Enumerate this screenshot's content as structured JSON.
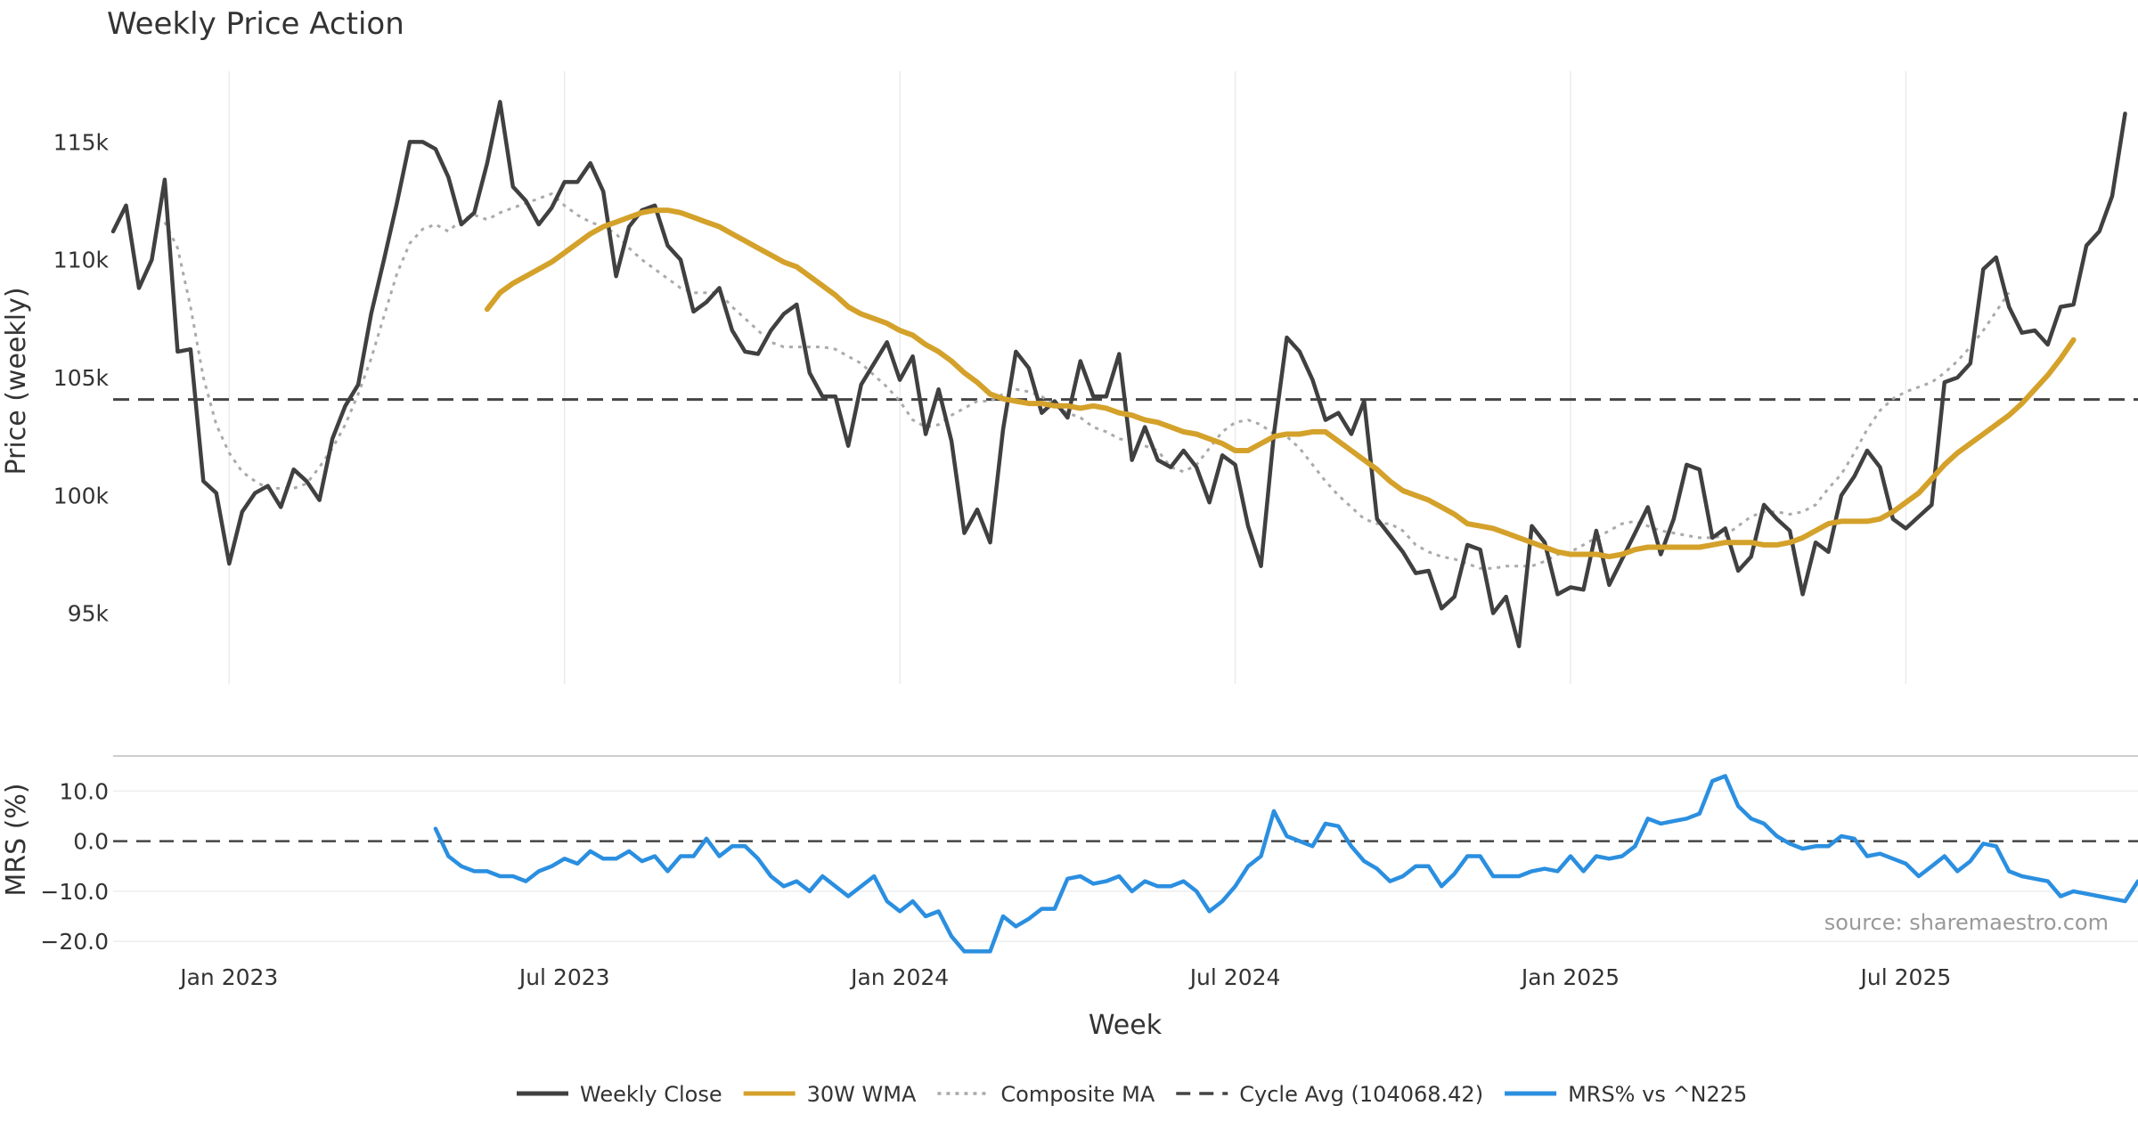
{
  "chart_data": {
    "title": "Weekly Price Action",
    "source": "source: sharemaestro.com",
    "xlabel": "Week",
    "x_ticks": [
      {
        "label": "Jan 2023",
        "week": 9
      },
      {
        "label": "Jul 2023",
        "week": 35
      },
      {
        "label": "Jan 2024",
        "week": 61
      },
      {
        "label": "Jul 2024",
        "week": 87
      },
      {
        "label": "Jan 2025",
        "week": 113
      },
      {
        "label": "Jul 2025",
        "week": 139
      }
    ],
    "price_panel": {
      "type": "line",
      "ylabel": "Price (weekly)",
      "ylim": [
        92000,
        118000
      ],
      "yticks": [
        95000,
        100000,
        105000,
        110000,
        115000
      ],
      "ytick_labels": [
        "95k",
        "100k",
        "105k",
        "110k",
        "115k"
      ],
      "cycle_avg": 104068.42,
      "series": [
        {
          "name": "Weekly Close",
          "color": "#404040",
          "start_week": 0,
          "values": [
            111200,
            112300,
            108800,
            110000,
            113400,
            106100,
            106200,
            100600,
            100100,
            97100,
            99300,
            100100,
            100400,
            99500,
            101100,
            100600,
            99800,
            102400,
            103800,
            104700,
            107700,
            110000,
            112400,
            115000,
            115000,
            114700,
            113500,
            111500,
            112000,
            114100,
            116700,
            113100,
            112500,
            111500,
            112200,
            113300,
            113300,
            114100,
            112900,
            109300,
            111400,
            112100,
            112300,
            110600,
            110000,
            107800,
            108200,
            108800,
            107000,
            106100,
            106000,
            107000,
            107700,
            108100,
            105200,
            104200,
            104200,
            102100,
            104700,
            105600,
            106500,
            104900,
            105900,
            102600,
            104500,
            102300,
            98400,
            99400,
            98000,
            102800,
            106100,
            105400,
            103500,
            104000,
            103300,
            105700,
            104200,
            104200,
            106000,
            101500,
            102900,
            101500,
            101200,
            101900,
            101200,
            99700,
            101700,
            101300,
            98700,
            97000,
            102600,
            106700,
            106100,
            104900,
            103200,
            103500,
            102600,
            104000,
            99000,
            98300,
            97600,
            96700,
            96800,
            95200,
            95700,
            97900,
            97700,
            95000,
            95700,
            93600,
            98700,
            98000,
            95800,
            96100,
            96000,
            98500,
            96200,
            97300,
            98400,
            99500,
            97500,
            99000,
            101300,
            101100,
            98200,
            98600,
            96800,
            97400,
            99600,
            99000,
            98500,
            95800,
            98000,
            97600,
            100000,
            100800,
            101900,
            101200,
            99000,
            98600,
            99100,
            99600,
            104800,
            105000,
            105600,
            109600,
            110100,
            108000,
            106900,
            107000,
            106400,
            108000,
            108100,
            110600,
            111200,
            112700,
            116200
          ]
        },
        {
          "name": "30W WMA",
          "color": "#d4a12a",
          "start_week": 29,
          "values": [
            107900,
            108600,
            109000,
            109300,
            109600,
            109900,
            110300,
            110700,
            111100,
            111400,
            111600,
            111800,
            112000,
            112100,
            112100,
            112000,
            111800,
            111600,
            111400,
            111100,
            110800,
            110500,
            110200,
            109900,
            109700,
            109300,
            108900,
            108500,
            108000,
            107700,
            107500,
            107300,
            107000,
            106800,
            106400,
            106100,
            105700,
            105200,
            104800,
            104300,
            104100,
            104000,
            103900,
            103900,
            103800,
            103800,
            103700,
            103800,
            103700,
            103500,
            103400,
            103200,
            103100,
            102900,
            102700,
            102600,
            102400,
            102200,
            101900,
            101900,
            102200,
            102500,
            102600,
            102600,
            102700,
            102700,
            102300,
            101900,
            101500,
            101100,
            100600,
            100200,
            100000,
            99800,
            99500,
            99200,
            98800,
            98700,
            98600,
            98400,
            98200,
            98000,
            97800,
            97600,
            97500,
            97500,
            97500,
            97400,
            97500,
            97700,
            97800,
            97800,
            97800,
            97800,
            97800,
            97900,
            98000,
            98000,
            98000,
            97900,
            97900,
            98000,
            98200,
            98500,
            98800,
            98900,
            98900,
            98900,
            99000,
            99300,
            99700,
            100100,
            100700,
            101300,
            101800,
            102200,
            102600,
            103000,
            103400,
            103900,
            104500,
            105100,
            105800,
            106600
          ]
        },
        {
          "name": "Composite MA",
          "color": "#aaaaaa",
          "start_week": 4,
          "values": [
            111600,
            110500,
            108000,
            105000,
            103000,
            101800,
            101000,
            100600,
            100300,
            100300,
            100300,
            100500,
            101200,
            102000,
            103000,
            104300,
            105800,
            107600,
            109400,
            110700,
            111300,
            111500,
            111200,
            111700,
            111900,
            111700,
            112000,
            112200,
            112400,
            112600,
            112800,
            112300,
            111900,
            111600,
            111400,
            111100,
            110500,
            110000,
            109600,
            109200,
            108800,
            108600,
            108600,
            108600,
            108000,
            107500,
            107000,
            106500,
            106300,
            106300,
            106300,
            106300,
            106200,
            105900,
            105600,
            105100,
            104600,
            104000,
            103200,
            102900,
            103000,
            103400,
            103700,
            104000,
            104000,
            104300,
            104500,
            104400,
            104200,
            103800,
            103500,
            103300,
            102900,
            102700,
            102400,
            102300,
            102100,
            101900,
            101200,
            101000,
            101300,
            102000,
            102700,
            103100,
            103200,
            103000,
            102600,
            102500,
            102000,
            101300,
            100600,
            100000,
            99500,
            99000,
            98800,
            98800,
            98500,
            97900,
            97600,
            97400,
            97300,
            97100,
            96900,
            96900,
            97000,
            97000,
            97000,
            97200,
            97500,
            97600,
            97900,
            98200,
            98500,
            98800,
            98900,
            98700,
            98500,
            98400,
            98300,
            98200,
            98200,
            98300,
            98700,
            99100,
            99300,
            99300,
            99200,
            99300,
            99600,
            100300,
            100900,
            101800,
            102800,
            103600,
            104100,
            104400,
            104600,
            104800,
            105200,
            105700,
            106300,
            107000,
            107800,
            108600
          ]
        }
      ]
    },
    "mrs_panel": {
      "type": "line",
      "ylabel": "MRS (%)",
      "ylim": [
        -23,
        17
      ],
      "yticks": [
        -20,
        -10,
        0,
        10
      ],
      "ytick_labels": [
        "−20.0",
        "−10.0",
        "0.0",
        "10.0"
      ],
      "zero_line": 0,
      "series": [
        {
          "name": "MRS% vs ^N225",
          "color": "#2b8fe0",
          "start_week": 25,
          "values": [
            2.5,
            -3,
            -5,
            -6,
            -6,
            -7,
            -7,
            -8,
            -6,
            -5,
            -3.5,
            -4.5,
            -2,
            -3.5,
            -3.5,
            -2,
            -4,
            -3,
            -6,
            -3,
            -3,
            0.5,
            -3,
            -1,
            -1,
            -3.5,
            -7,
            -9,
            -8,
            -10,
            -7,
            -9,
            -11,
            -9,
            -7,
            -12,
            -14,
            -12,
            -15,
            -14,
            -19,
            -22,
            -22,
            -22,
            -15,
            -17,
            -15.5,
            -13.5,
            -13.5,
            -7.5,
            -7,
            -8.5,
            -8,
            -7,
            -10,
            -8,
            -9,
            -9,
            -8,
            -10,
            -14,
            -12,
            -9,
            -5,
            -3,
            6,
            1,
            0,
            -1,
            3.5,
            3,
            -1,
            -4,
            -5.5,
            -8,
            -7,
            -5,
            -5,
            -9,
            -6.5,
            -3,
            -3,
            -7,
            -7,
            -7,
            -6,
            -5.5,
            -6,
            -3,
            -6,
            -3,
            -3.5,
            -3,
            -1,
            4.5,
            3.5,
            4,
            4.5,
            5.5,
            12,
            13,
            7,
            4.5,
            3.5,
            1,
            -0.5,
            -1.5,
            -1,
            -1,
            1,
            0.5,
            -3,
            -2.5,
            -3.5,
            -4.5,
            -7,
            -5,
            -3,
            -6,
            -4,
            -0.5,
            -1,
            -6,
            -7,
            -7.5,
            -8,
            -11,
            -10,
            -10.5,
            -11,
            -11.5,
            -12,
            -8
          ]
        }
      ]
    },
    "legend": [
      {
        "label": "Weekly Close",
        "style": "solid",
        "color": "#404040"
      },
      {
        "label": "30W WMA",
        "style": "solid",
        "color": "#d4a12a"
      },
      {
        "label": "Composite MA",
        "style": "dotted",
        "color": "#aaaaaa"
      },
      {
        "label": "Cycle Avg (104068.42)",
        "style": "dashed",
        "color": "#444444"
      },
      {
        "label": "MRS% vs ^N225",
        "style": "solid",
        "color": "#2b8fe0"
      }
    ]
  }
}
